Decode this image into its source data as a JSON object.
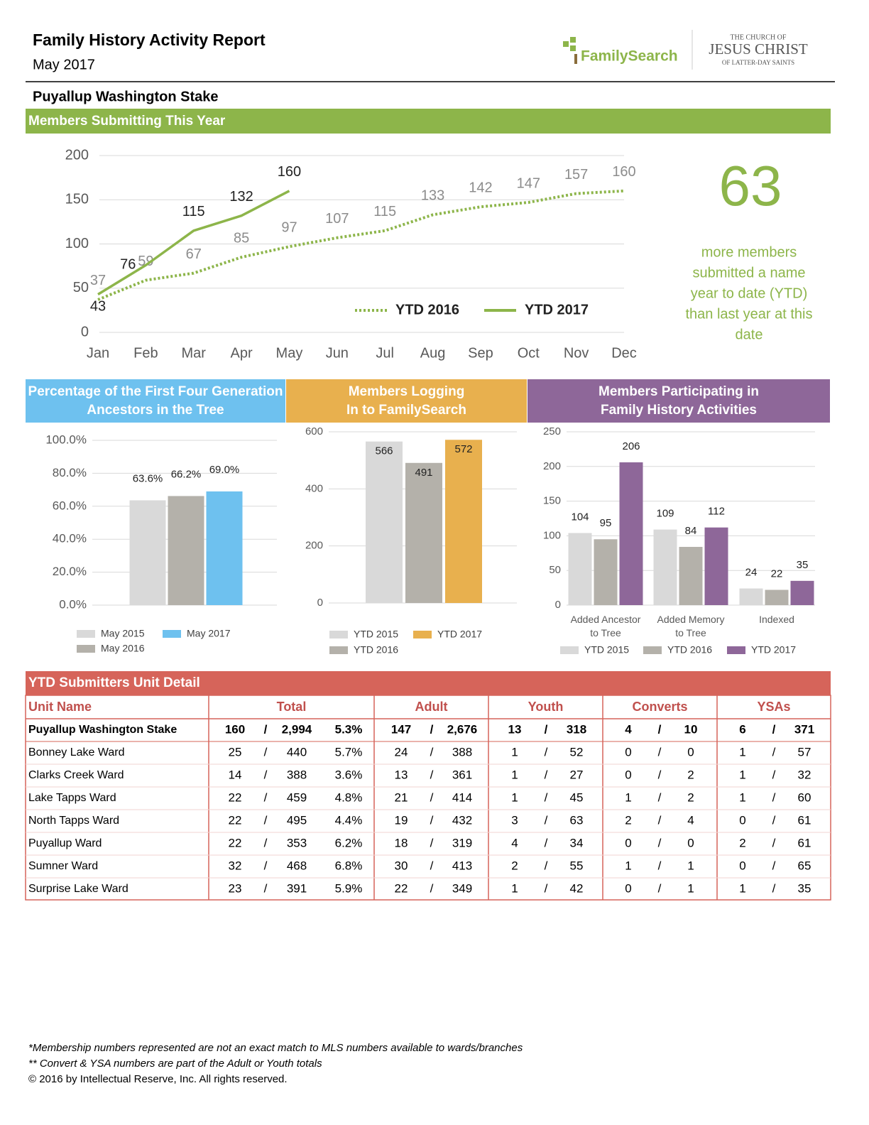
{
  "header": {
    "title": "Family History Activity Report",
    "subtitle": "May 2017",
    "brand": "FamilySearch",
    "church_lines": [
      "THE CHURCH OF",
      "JESUS CHRIST",
      "OF LATTER-DAY SAINTS"
    ]
  },
  "stake": "Puyallup Washington Stake",
  "chart_data": [
    {
      "type": "line",
      "title": "Members Submitting This Year",
      "categories": [
        "Jan",
        "Feb",
        "Mar",
        "Apr",
        "May",
        "Jun",
        "Jul",
        "Aug",
        "Sep",
        "Oct",
        "Nov",
        "Dec"
      ],
      "series": [
        {
          "name": "YTD 2016",
          "color": "#8db54a",
          "line_style": "dotted",
          "values": [
            37,
            59,
            67,
            85,
            97,
            107,
            115,
            133,
            142,
            147,
            157,
            160
          ]
        },
        {
          "name": "YTD 2017",
          "color": "#8db54a",
          "line_style": "solid",
          "values": [
            43,
            76,
            115,
            132,
            160,
            null,
            null,
            null,
            null,
            null,
            null,
            null
          ]
        }
      ],
      "ylim": [
        0,
        200
      ],
      "yticks": [
        0,
        50,
        100,
        150,
        200
      ],
      "grid": true
    },
    {
      "type": "bar",
      "title": [
        "Percentage of the First Four Generation",
        "Ancestors in the Tree"
      ],
      "header_color": "#6ec1ef",
      "categories": [
        null
      ],
      "series": [
        {
          "name": "May 2015",
          "color": "#d9d9d9",
          "values": [
            63.6
          ],
          "value_labels": [
            "63.6%"
          ]
        },
        {
          "name": "May 2016",
          "color": "#b4b1aa",
          "values": [
            66.2
          ],
          "value_labels": [
            "66.2%"
          ]
        },
        {
          "name": "May 2017",
          "color": "#6ec1ef",
          "values": [
            69.0
          ],
          "value_labels": [
            "69.0%"
          ]
        }
      ],
      "ylim": [
        0,
        100
      ],
      "yticks": [
        {
          "value": 0,
          "label": "0.0%"
        },
        {
          "value": 20,
          "label": "20.0%"
        },
        {
          "value": 40,
          "label": "40.0%"
        },
        {
          "value": 60,
          "label": "60.0%"
        },
        {
          "value": 80,
          "label": "80.0%"
        },
        {
          "value": 100,
          "label": "100.0%"
        }
      ],
      "grid": true
    },
    {
      "type": "bar",
      "title": [
        "Members Logging",
        "In to FamilySearch"
      ],
      "header_color": "#e8b04e",
      "categories": [
        null
      ],
      "series": [
        {
          "name": "YTD 2015",
          "color": "#d9d9d9",
          "values": [
            566
          ]
        },
        {
          "name": "YTD 2016",
          "color": "#b4b1aa",
          "values": [
            491
          ]
        },
        {
          "name": "YTD 2017",
          "color": "#e8b04e",
          "values": [
            572
          ]
        }
      ],
      "ylim": [
        0,
        600
      ],
      "yticks": [
        0,
        200,
        400,
        600
      ],
      "grid": true
    },
    {
      "type": "bar",
      "title": [
        "Members Participating in",
        "Family History Activities"
      ],
      "header_color": "#8e6799",
      "categories": [
        "Added Ancestor to Tree",
        "Added Memory to Tree",
        "Indexed"
      ],
      "series": [
        {
          "name": "YTD 2015",
          "color": "#d9d9d9",
          "values": [
            104,
            109,
            24
          ]
        },
        {
          "name": "YTD 2016",
          "color": "#b4b1aa",
          "values": [
            95,
            84,
            22
          ]
        },
        {
          "name": "YTD 2017",
          "color": "#8e6799",
          "values": [
            206,
            112,
            35
          ]
        }
      ],
      "ylim": [
        0,
        250
      ],
      "yticks": [
        0,
        50,
        100,
        150,
        200,
        250
      ],
      "grid": true
    }
  ],
  "callout": {
    "number": "63",
    "lines": [
      "more members",
      "submitted a name",
      "year to date (YTD)",
      "than last year at this",
      "date"
    ]
  },
  "table": {
    "title": "YTD Submitters Unit Detail",
    "columns": [
      "Unit Name",
      "Total",
      "Adult",
      "Youth",
      "Converts",
      "YSAs"
    ],
    "separator": "/",
    "summary": [
      "Puyallup Washington Stake",
      "160",
      "2,994",
      "5.3%",
      "147",
      "2,676",
      "13",
      "318",
      "4",
      "10",
      "6",
      "371"
    ],
    "rows": [
      [
        "Bonney Lake Ward",
        "25",
        "440",
        "5.7%",
        "24",
        "388",
        "1",
        "52",
        "0",
        "0",
        "1",
        "57"
      ],
      [
        "Clarks Creek Ward",
        "14",
        "388",
        "3.6%",
        "13",
        "361",
        "1",
        "27",
        "0",
        "2",
        "1",
        "32"
      ],
      [
        "Lake Tapps Ward",
        "22",
        "459",
        "4.8%",
        "21",
        "414",
        "1",
        "45",
        "1",
        "2",
        "1",
        "60"
      ],
      [
        "North Tapps Ward",
        "22",
        "495",
        "4.4%",
        "19",
        "432",
        "3",
        "63",
        "2",
        "4",
        "0",
        "61"
      ],
      [
        "Puyallup Ward",
        "22",
        "353",
        "6.2%",
        "18",
        "319",
        "4",
        "34",
        "0",
        "0",
        "2",
        "61"
      ],
      [
        "Sumner Ward",
        "32",
        "468",
        "6.8%",
        "30",
        "413",
        "2",
        "55",
        "1",
        "1",
        "0",
        "65"
      ],
      [
        "Surprise Lake Ward",
        "23",
        "391",
        "5.9%",
        "22",
        "349",
        "1",
        "42",
        "0",
        "1",
        "1",
        "35"
      ]
    ]
  },
  "footnotes": [
    "*Membership numbers represented are not an exact match to MLS numbers available to wards/branches",
    "** Convert & YSA numbers are part of the Adult or Youth totals",
    "© 2016 by Intellectual Reserve, Inc. All rights reserved."
  ]
}
